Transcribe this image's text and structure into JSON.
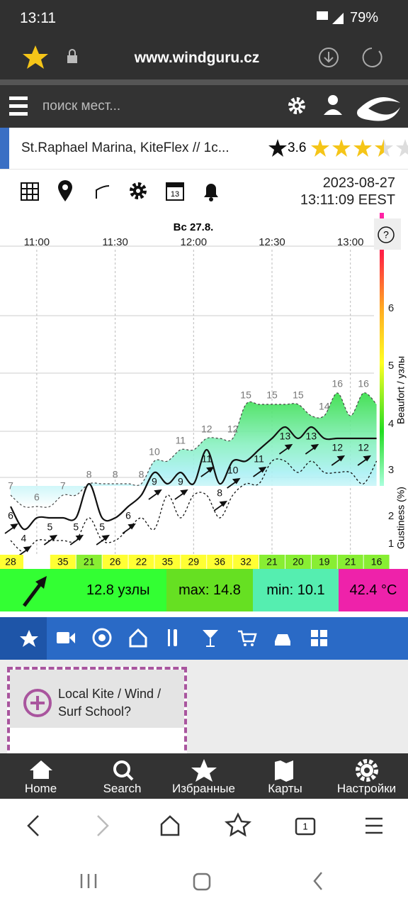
{
  "status_bar": {
    "time": "13:11",
    "battery": "79%"
  },
  "browser": {
    "url": "www.windguru.cz"
  },
  "site_header": {
    "search_placeholder": "поиск мест..."
  },
  "spot": {
    "name": "St.Raphael Marina, KiteFlex // 1c...",
    "rating": "3.6"
  },
  "datetime": {
    "date": "2023-08-27",
    "time": "13:11:09 EEST"
  },
  "wind_chart": {
    "day": "Вс 27.8.",
    "times": [
      null,
      null,
      "11:00",
      null,
      null,
      null,
      null,
      null,
      "11:30",
      null,
      null,
      null,
      null,
      null,
      "12:00",
      null,
      null,
      null,
      null,
      null,
      "12:30",
      null,
      null,
      null,
      null,
      null,
      "13:00",
      null,
      null
    ],
    "wind": [
      6,
      4,
      5,
      5,
      5,
      5,
      8,
      5,
      5,
      6,
      7,
      9,
      8,
      9,
      8,
      11,
      8,
      10,
      10,
      11,
      12,
      13,
      12,
      13,
      12,
      12,
      12,
      12,
      12
    ],
    "wind_labels": [
      6,
      4,
      null,
      5,
      null,
      5,
      null,
      5,
      null,
      6,
      null,
      9,
      null,
      9,
      null,
      11,
      8,
      10,
      null,
      11,
      null,
      13,
      null,
      13,
      null,
      12,
      null,
      12,
      null
    ],
    "gust": [
      7,
      6,
      6,
      6,
      7,
      7,
      8,
      8,
      8,
      8,
      8,
      10,
      10,
      11,
      11,
      12,
      12,
      12,
      15,
      15,
      15,
      15,
      15,
      14,
      14,
      16,
      14,
      16,
      15
    ],
    "gust_labels": [
      7,
      null,
      6,
      null,
      7,
      null,
      8,
      null,
      8,
      null,
      8,
      10,
      null,
      11,
      null,
      12,
      null,
      12,
      15,
      null,
      15,
      null,
      15,
      null,
      14,
      16,
      null,
      16,
      null
    ],
    "lull": [
      3,
      2,
      3,
      3,
      3,
      3,
      5,
      3,
      3,
      4,
      5,
      4,
      7,
      5,
      7,
      7,
      5,
      7,
      8,
      8,
      10,
      10,
      9,
      10,
      9,
      9,
      9,
      8,
      10
    ],
    "gustiness": [
      28,
      null,
      null,
      null,
      35,
      null,
      21,
      null,
      26,
      null,
      22,
      null,
      35,
      null,
      29,
      null,
      36,
      null,
      32,
      null,
      21,
      null,
      20,
      null,
      19,
      null,
      21,
      null,
      16
    ],
    "beaufort_ticks": [
      1,
      2,
      3,
      4,
      5,
      6
    ],
    "axis_label": "Beaufort / узлы",
    "gustiness_label": "Gustiness (%)",
    "help": "?"
  },
  "summary": {
    "wind": "12.8 узлы",
    "max": "max: 14.8",
    "min": "min: 10.1",
    "temperature": "42.4 °C"
  },
  "promo": {
    "text": "Local Kite / Wind / Surf School?"
  },
  "bottom_nav": [
    "Home",
    "Search",
    "Избранные",
    "Карты",
    "Настройки"
  ]
}
